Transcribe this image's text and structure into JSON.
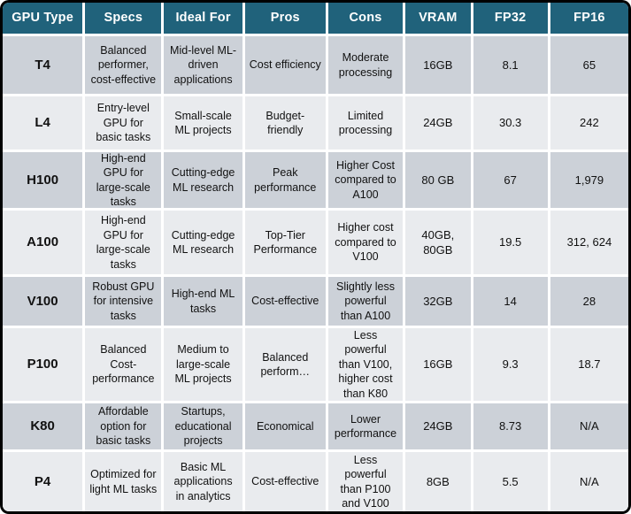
{
  "title": "GPU comparison table",
  "colors": {
    "header_bg": "#20627B",
    "header_text": "#FFFFFF",
    "row_dark": "#CCD1D8",
    "row_light": "#E9EBEE",
    "gap": "#FFFFFF",
    "border": "#000000",
    "text": "#111111"
  },
  "chart_data": {
    "type": "table",
    "title": "",
    "legend_position": "none",
    "columns": [
      "GPU Type",
      "Specs",
      "Ideal For",
      "Pros",
      "Cons",
      "VRAM",
      "FP32",
      "FP16"
    ],
    "rows": [
      [
        "T4",
        "Balanced performer, cost-effective",
        "Mid-level ML-driven applications",
        "Cost efficiency",
        "Moderate processing",
        "16GB",
        "8.1",
        "65"
      ],
      [
        "L4",
        "Entry-level GPU for basic tasks",
        "Small-scale ML projects",
        "Budget-friendly",
        "Limited processing",
        "24GB",
        "30.3",
        "242"
      ],
      [
        "H100",
        "High-end GPU for large-scale tasks",
        "Cutting-edge ML research",
        "Peak performance",
        "Higher Cost compared to A100",
        "80 GB",
        "67",
        "1,979"
      ],
      [
        "A100",
        "High-end GPU for large-scale tasks",
        "Cutting-edge ML research",
        "Top-Tier Performance",
        "Higher cost compared to V100",
        "40GB, 80GB",
        "19.5",
        "312, 624"
      ],
      [
        "V100",
        "Robust GPU for intensive tasks",
        "High-end ML tasks",
        "Cost-effective",
        "Slightly less powerful than A100",
        "32GB",
        "14",
        "28"
      ],
      [
        "P100",
        "Balanced Cost-performance",
        "Medium to large-scale ML projects",
        "Balanced perform…",
        "Less powerful than V100, higher cost than K80",
        "16GB",
        "9.3",
        "18.7"
      ],
      [
        "K80",
        "Affordable option for basic tasks",
        "Startups, educational projects",
        "Economical",
        "Lower performance",
        "24GB",
        "8.73",
        "N/A"
      ],
      [
        "P4",
        "Optimized for light ML tasks",
        "Basic ML applications in analytics",
        "Cost-effective",
        "Less powerful than P100 and V100",
        "8GB",
        "5.5",
        "N/A"
      ]
    ]
  }
}
